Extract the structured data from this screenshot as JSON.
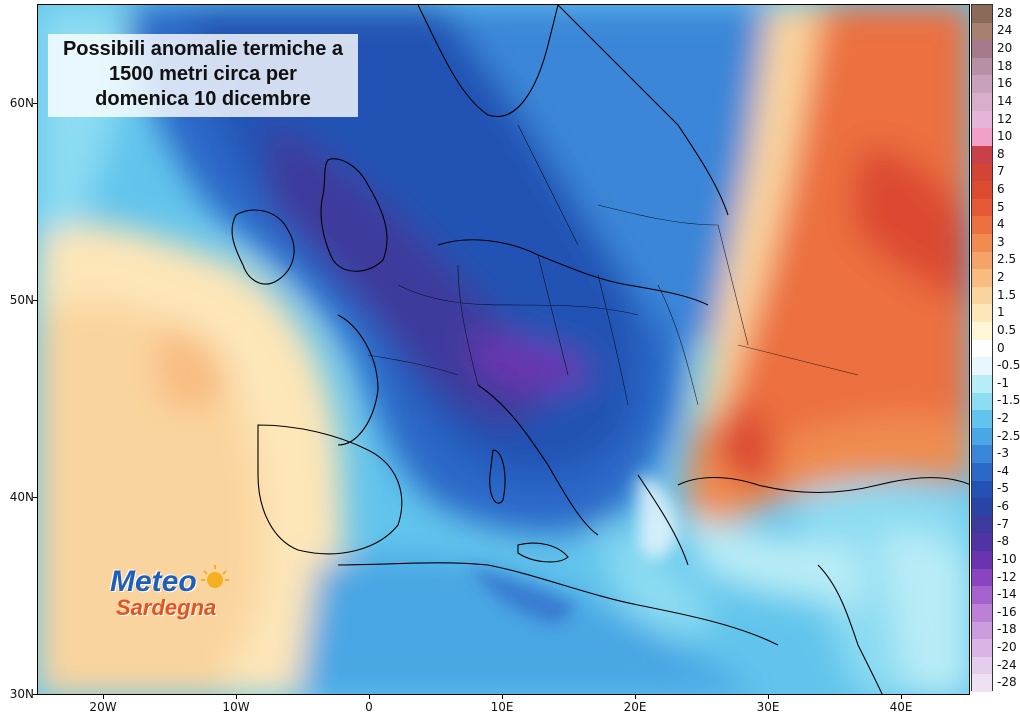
{
  "title": {
    "line1": "Possibili anomalie termiche a",
    "line2": "1500 metri circa per",
    "line3": "domenica 10 dicembre"
  },
  "axes": {
    "latitudes": [
      {
        "label": "60N",
        "value": 60
      },
      {
        "label": "50N",
        "value": 50
      },
      {
        "label": "40N",
        "value": 40
      },
      {
        "label": "30N",
        "value": 30
      }
    ],
    "longitudes": [
      {
        "label": "20W",
        "value": -20
      },
      {
        "label": "10W",
        "value": -10
      },
      {
        "label": "0",
        "value": 0
      },
      {
        "label": "10E",
        "value": 10
      },
      {
        "label": "20E",
        "value": 20
      },
      {
        "label": "30E",
        "value": 30
      },
      {
        "label": "40E",
        "value": 40
      }
    ]
  },
  "colorbar": {
    "levels": [
      "28",
      "24",
      "20",
      "18",
      "16",
      "14",
      "12",
      "10",
      "8",
      "7",
      "6",
      "5",
      "4",
      "3",
      "2.5",
      "2",
      "1.5",
      "1",
      "0.5",
      "0",
      "-0.5",
      "-1",
      "-1.5",
      "-2",
      "-2.5",
      "-3",
      "-4",
      "-5",
      "-6",
      "-7",
      "-8",
      "-10",
      "-12",
      "-14",
      "-16",
      "-18",
      "-20",
      "-24",
      "-28"
    ],
    "colors": [
      "#8c6a5a",
      "#a78070",
      "#a57a8c",
      "#b890a4",
      "#c8a2bc",
      "#d8aecc",
      "#e6b4d8",
      "#f2a0c8",
      "#c8404a",
      "#d24434",
      "#dc4a30",
      "#e45a36",
      "#ec7040",
      "#f08c50",
      "#f4a468",
      "#f8bc80",
      "#fad49e",
      "#fde6b8",
      "#fff6d8",
      "#ffffff",
      "#e6f8fc",
      "#b8ecf6",
      "#8cdcf2",
      "#62c4ec",
      "#4aa6e4",
      "#3a86d8",
      "#2c68c8",
      "#2452b4",
      "#2a44a4",
      "#3c3a9c",
      "#5034a4",
      "#6a34b0",
      "#8a44c0",
      "#a662cc",
      "#bc80d6",
      "#cc9cde",
      "#dab4e6",
      "#e6cced",
      "#f0e0f4"
    ]
  },
  "logo": {
    "word1": "Meteo",
    "word2": "Sardegna"
  }
}
